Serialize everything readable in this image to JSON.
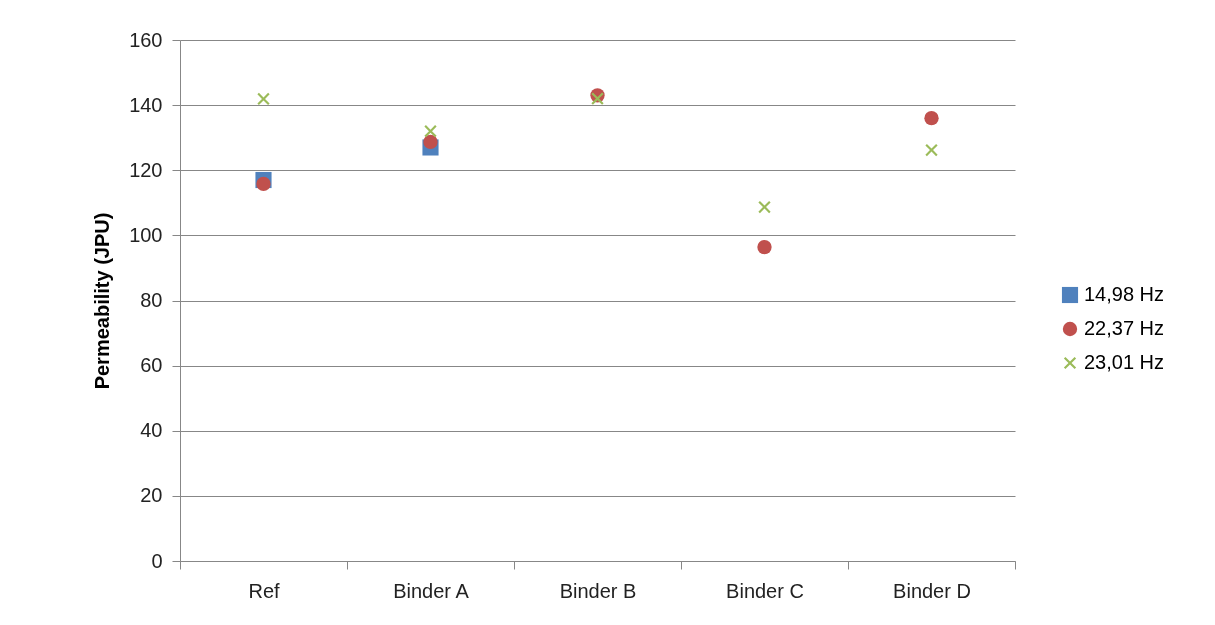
{
  "chart_data": {
    "type": "scatter",
    "ylabel": "Permeability (JPU)",
    "categories": [
      "Ref",
      "Binder A",
      "Binder B",
      "Binder C",
      "Binder D"
    ],
    "series": [
      {
        "name": "14,98 Hz",
        "color": "#4f81bd",
        "marker": "square",
        "values": [
          117,
          127,
          null,
          null,
          null
        ]
      },
      {
        "name": "22,37 Hz",
        "color": "#c0504d",
        "marker": "circle",
        "values": [
          115.8,
          128.7,
          143,
          96.4,
          136
        ]
      },
      {
        "name": "23,01 Hz",
        "color": "#9bbb59",
        "marker": "cross",
        "values": [
          141.9,
          132,
          142,
          108.7,
          126.2
        ]
      }
    ],
    "ylim": [
      0,
      160
    ],
    "yticks": [
      0,
      20,
      40,
      60,
      80,
      100,
      120,
      140,
      160
    ],
    "grid": "y",
    "legend": "right"
  }
}
